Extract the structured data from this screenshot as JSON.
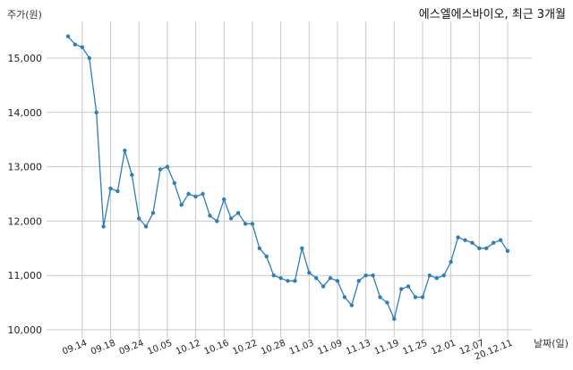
{
  "chart_data": {
    "type": "line",
    "title": "에스엘에스바이오, 최근 3개월",
    "ylabel": "주가(원)",
    "xlabel": "날짜(일)",
    "ylim": [
      10000,
      15700
    ],
    "yticks": [
      10000,
      11000,
      12000,
      13000,
      14000,
      15000
    ],
    "ytick_labels": [
      "10,000",
      "11,000",
      "12,000",
      "13,000",
      "14,000",
      "15,000"
    ],
    "xtick_labels": [
      "09.14",
      "09.18",
      "09.24",
      "10.05",
      "10.12",
      "10.16",
      "10.22",
      "10.28",
      "11.03",
      "11.09",
      "11.13",
      "11.19",
      "11.25",
      "12.01",
      "12.07",
      "20.12.11"
    ],
    "xtick_index": [
      2,
      6,
      10,
      14,
      18,
      22,
      26,
      30,
      34,
      38,
      42,
      46,
      50,
      54,
      58,
      62
    ],
    "grid": true,
    "line_color": "#2f7eb5",
    "series": [
      {
        "values": [
          15400,
          15250,
          15200,
          15000,
          14000,
          11900,
          12600,
          12550,
          13300,
          12850,
          12050,
          11900,
          12150,
          12950,
          13000,
          12700,
          12300,
          12500,
          12450,
          12500,
          12100,
          12000,
          12400,
          12050,
          12150,
          11950,
          11950,
          11500,
          11350,
          11000,
          10950,
          10900,
          10900,
          11500,
          11050,
          10950,
          10800,
          10950,
          10900,
          10600,
          10450,
          10900,
          11000,
          11000,
          10600,
          10500,
          10200,
          10750,
          10800,
          10600,
          10600,
          11000,
          10950,
          11000,
          11250,
          11700,
          11650,
          11600,
          11500,
          11500,
          11600,
          11650,
          11450
        ]
      }
    ]
  }
}
